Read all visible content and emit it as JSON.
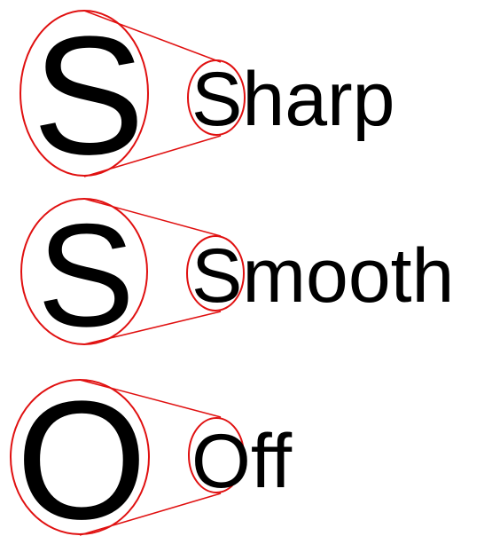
{
  "accent_color": "#e01010",
  "text_color": "#000000",
  "samples": [
    {
      "mode": "Sharp",
      "magnified_letter": "S"
    },
    {
      "mode": "Smooth",
      "magnified_letter": "S"
    },
    {
      "mode": "Off",
      "magnified_letter": "O"
    }
  ]
}
